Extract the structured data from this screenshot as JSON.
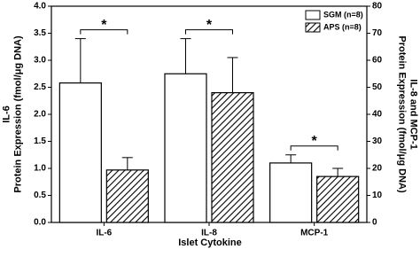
{
  "chart_data": {
    "type": "bar",
    "y_label_lines": [
      "IL-6",
      "Protein Expression (fmol/μg DNA)"
    ],
    "y2_label_lines": [
      "IL-8 and MCP-1",
      "Protein Expression (fmol/μg DNA)"
    ],
    "x_label": "Islet Cytokine",
    "categories": [
      "IL-6",
      "IL-8",
      "MCP-1"
    ],
    "axes": [
      "y",
      "y2",
      "y2"
    ],
    "series": [
      {
        "name": "SGM (n=8)",
        "color": "#ffffff",
        "hatch": false,
        "values": [
          2.58,
          55,
          22
        ],
        "errors": [
          0.82,
          13,
          3
        ]
      },
      {
        "name": "APS (n=8)",
        "color": "#ffffff",
        "hatch": true,
        "values": [
          0.97,
          48,
          17
        ],
        "errors": [
          0.23,
          13,
          3
        ]
      }
    ],
    "annotations": [
      "*",
      "*",
      "*"
    ],
    "ylim": [
      0,
      4
    ],
    "yticks": [
      {
        "value": 0,
        "label": "0.0"
      },
      0.5,
      {
        "value": 1,
        "label": "1.0"
      },
      1.5,
      {
        "value": 2,
        "label": "2.0"
      },
      2.5,
      {
        "value": 3,
        "label": "3.0"
      },
      3.5,
      {
        "value": 4,
        "label": "4.0"
      }
    ],
    "y2lim": [
      0,
      80
    ],
    "y2ticks": [
      0,
      10,
      20,
      30,
      40,
      50,
      60,
      70,
      80
    ],
    "legend": "top-right"
  }
}
